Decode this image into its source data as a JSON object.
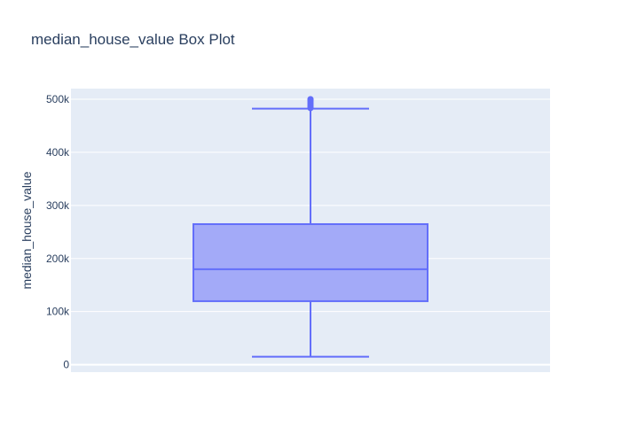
{
  "chart_data": {
    "type": "box",
    "title": "median_house_value Box Plot",
    "ylabel": "median_house_value",
    "xlabel": "",
    "ylim": [
      -14000,
      520000
    ],
    "yticks": [
      0,
      100000,
      200000,
      300000,
      400000,
      500000
    ],
    "ytick_labels": [
      "0",
      "100k",
      "200k",
      "300k",
      "400k",
      "500k"
    ],
    "series": [
      {
        "min": 14999,
        "q1": 119600,
        "median": 179700,
        "q3": 264725,
        "upper_fence": 482200,
        "outliers": [
          483300,
          485000,
          487500,
          490000,
          492500,
          495000,
          497500,
          500000,
          500001
        ]
      }
    ],
    "colors": {
      "plot_bg": "#e5ecf6",
      "grid": "#ffffff",
      "box_line": "#636efa",
      "box_fill": "#a3aaf8"
    }
  }
}
